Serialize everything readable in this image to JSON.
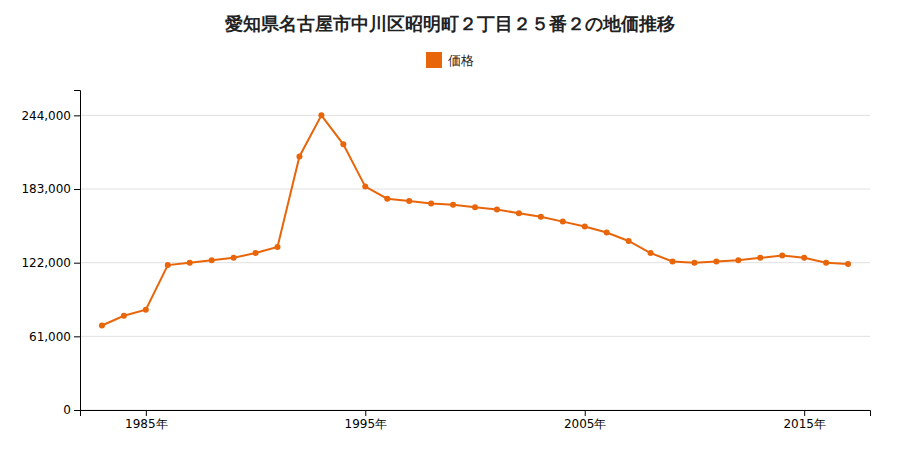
{
  "chart_data": {
    "type": "line",
    "title": "愛知県名古屋市中川区昭明町２丁目２５番２の地価推移",
    "x": [
      1983,
      1984,
      1985,
      1986,
      1987,
      1988,
      1989,
      1990,
      1991,
      1992,
      1993,
      1994,
      1995,
      1996,
      1997,
      1998,
      1999,
      2000,
      2001,
      2002,
      2003,
      2004,
      2005,
      2006,
      2007,
      2008,
      2009,
      2010,
      2011,
      2012,
      2013,
      2014,
      2015,
      2016,
      2017
    ],
    "series": [
      {
        "name": "価格",
        "color": "#e8650a",
        "marker": "circle",
        "values": [
          70000,
          78000,
          83000,
          120000,
          122000,
          124000,
          126000,
          130000,
          135000,
          210000,
          244000,
          220000,
          185000,
          175000,
          173000,
          171000,
          170000,
          168000,
          166000,
          163000,
          160000,
          156000,
          152000,
          147000,
          140000,
          130000,
          123000,
          122000,
          123000,
          124000,
          126000,
          128000,
          126000,
          122000,
          121000
        ]
      }
    ],
    "xlim": [
      1982,
      2018
    ],
    "xticks": [
      {
        "value": 1985,
        "label": "1985年"
      },
      {
        "value": 1995,
        "label": "1995年"
      },
      {
        "value": 2005,
        "label": "2005年"
      },
      {
        "value": 2015,
        "label": "2015年"
      }
    ],
    "ylim": [
      0,
      265000
    ],
    "yticks": [
      0,
      {
        "value": 61000,
        "label": "61,000"
      },
      {
        "value": 122000,
        "label": "122,000"
      },
      {
        "value": 183000,
        "label": "183,000"
      },
      {
        "value": 244000,
        "label": "244,000"
      }
    ],
    "grid": true,
    "legend": "top"
  }
}
